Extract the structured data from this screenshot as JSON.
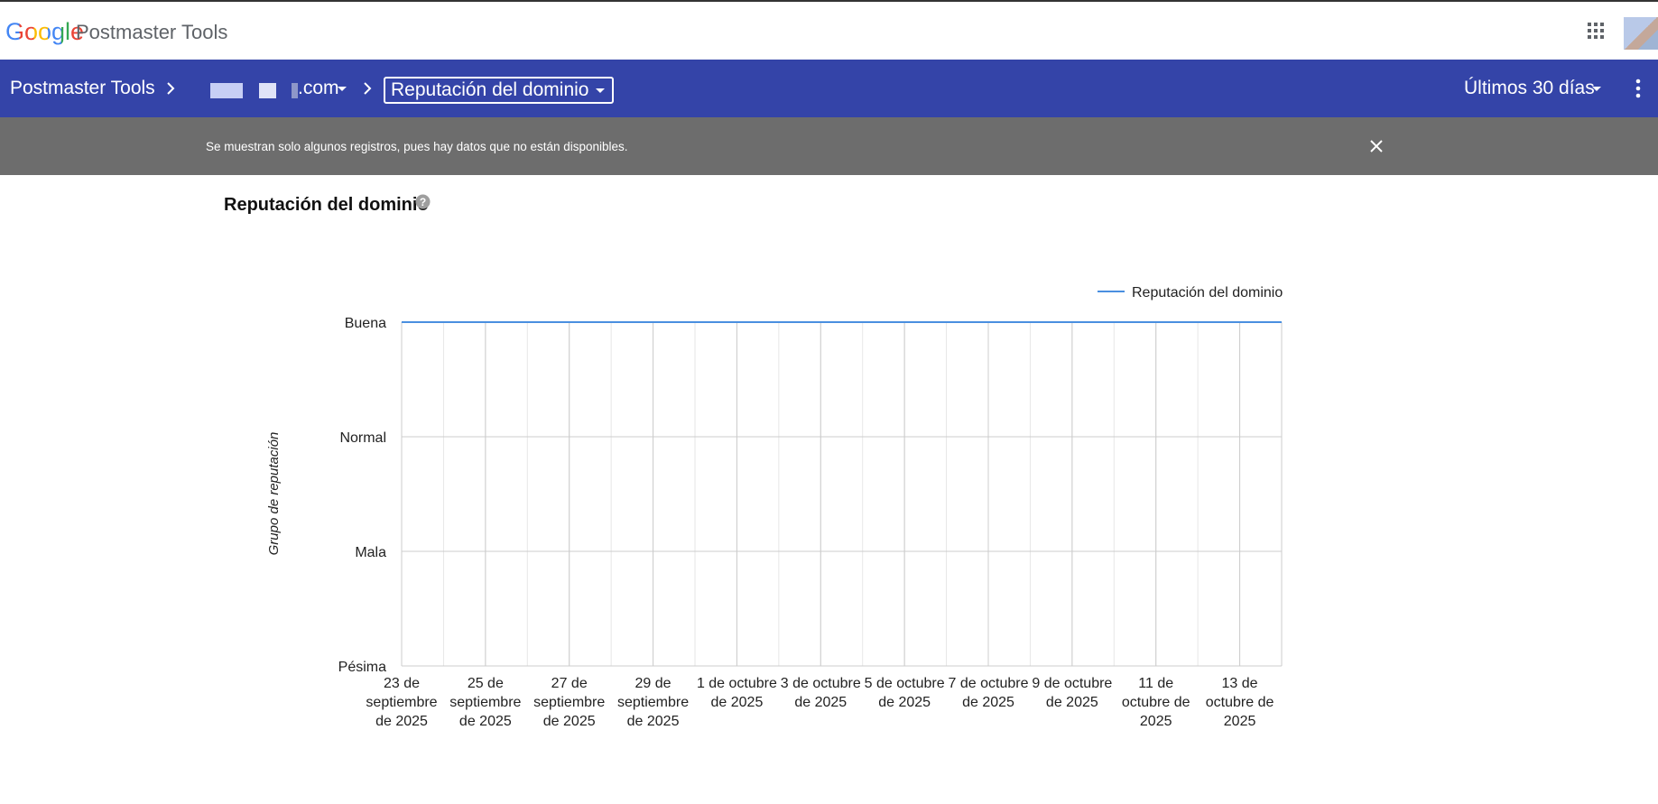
{
  "header": {
    "logo": "Google",
    "product": "Postmaster Tools"
  },
  "nav": {
    "home": "Postmaster Tools",
    "domain": ".com",
    "section": "Reputación del dominio",
    "range": "Últimos 30 días"
  },
  "notice": {
    "text": "Se muestran solo algunos registros, pues hay datos que no están disponibles."
  },
  "chart_data": {
    "type": "line",
    "title": "Reputación del dominio",
    "y_label": "Grupo de reputación",
    "x": [
      "2025-09-23",
      "2025-09-24",
      "2025-09-25",
      "2025-09-26",
      "2025-09-27",
      "2025-09-28",
      "2025-09-29",
      "2025-09-30",
      "2025-10-01",
      "2025-10-02",
      "2025-10-03",
      "2025-10-04",
      "2025-10-05",
      "2025-10-06",
      "2025-10-07",
      "2025-10-08",
      "2025-10-09",
      "2025-10-10",
      "2025-10-11",
      "2025-10-12",
      "2025-10-13",
      "2025-10-14"
    ],
    "series": [
      {
        "name": "Reputación del dominio",
        "color": "#4a8fe0",
        "values": [
          3,
          3,
          3,
          3,
          3,
          3,
          3,
          3,
          3,
          3,
          3,
          3,
          3,
          3,
          3,
          3,
          3,
          3,
          3,
          3,
          3,
          3
        ]
      }
    ],
    "xlim": [
      "2025-09-23",
      "2025-10-14"
    ],
    "xticks": [
      {
        "value": "2025-09-23",
        "label": "23 de septiembre de 2025"
      },
      {
        "value": "2025-09-25",
        "label": "25 de septiembre de 2025"
      },
      {
        "value": "2025-09-27",
        "label": "27 de septiembre de 2025"
      },
      {
        "value": "2025-09-29",
        "label": "29 de septiembre de 2025"
      },
      {
        "value": "2025-10-01",
        "label": "1 de octubre de 2025"
      },
      {
        "value": "2025-10-03",
        "label": "3 de octubre de 2025"
      },
      {
        "value": "2025-10-05",
        "label": "5 de octubre de 2025"
      },
      {
        "value": "2025-10-07",
        "label": "7 de octubre de 2025"
      },
      {
        "value": "2025-10-09",
        "label": "9 de octubre de 2025"
      },
      {
        "value": "2025-10-11",
        "label": "11 de octubre de 2025"
      },
      {
        "value": "2025-10-13",
        "label": "13 de octubre de 2025"
      }
    ],
    "ylim": [
      0,
      3
    ],
    "yticks": [
      {
        "value": 0,
        "label": "Pésima"
      },
      {
        "value": 1,
        "label": "Mala"
      },
      {
        "value": 2,
        "label": "Normal"
      },
      {
        "value": 3,
        "label": "Buena"
      }
    ],
    "grid": true,
    "legend": "top-right"
  }
}
